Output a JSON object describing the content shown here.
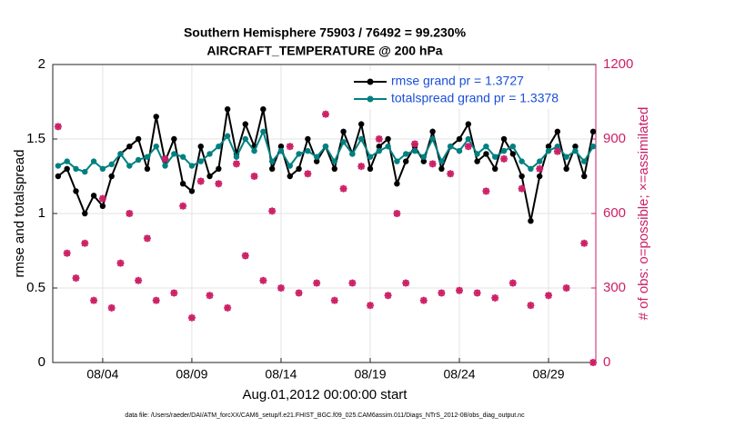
{
  "chart_data": {
    "type": "line",
    "title": "Southern Hemisphere 75903 / 76492 = 99.230%",
    "subtitle": "AIRCRAFT_TEMPERATURE @ 200 hPa",
    "ylabel": "rmse and totalspread",
    "y2label": "# of obs: o=possible; ×=assimilated",
    "xlabel": "Aug.01,2012 00:00:00 start",
    "footnote": "data file: /Users/raeder/DAI/ATM_forcXX/CAM6_setup/f.e21.FHIST_BGC.f09_025.CAM6assim.011/Diags_NTrS_2012-08/obs_diag_output.nc",
    "grid": true,
    "legend": "upper right",
    "xlim": [
      0.2,
      30.65
    ],
    "xticks": [
      {
        "value": 3,
        "label": "08/04"
      },
      {
        "value": 8,
        "label": "08/09"
      },
      {
        "value": 13,
        "label": "08/14"
      },
      {
        "value": 18,
        "label": "08/19"
      },
      {
        "value": 23,
        "label": "08/24"
      },
      {
        "value": 28,
        "label": "08/29"
      }
    ],
    "ylim": [
      0,
      2
    ],
    "yticks": [
      0,
      0.5,
      1,
      1.5,
      2
    ],
    "y2lim": [
      0,
      1200
    ],
    "y2ticks": [
      0,
      300,
      600,
      900,
      1200
    ],
    "x": [
      0.5,
      1,
      1.5,
      2,
      2.5,
      3,
      3.5,
      4,
      4.5,
      5,
      5.5,
      6,
      6.5,
      7,
      7.5,
      8,
      8.5,
      9,
      9.5,
      10,
      10.5,
      11,
      11.5,
      12,
      12.5,
      13,
      13.5,
      14,
      14.5,
      15,
      15.5,
      16,
      16.5,
      17,
      17.5,
      18,
      18.5,
      19,
      19.5,
      20,
      20.5,
      21,
      21.5,
      22,
      22.5,
      23,
      23.5,
      24,
      24.5,
      25,
      25.5,
      26,
      26.5,
      27,
      27.5,
      28,
      28.5,
      29,
      29.5,
      30,
      30.5
    ],
    "series": [
      {
        "name": "rmse grand pr = 1.3727",
        "color": "#000000",
        "values": [
          1.25,
          1.3,
          1.15,
          1.0,
          1.12,
          1.05,
          1.25,
          1.4,
          1.45,
          1.5,
          1.3,
          1.65,
          1.35,
          1.5,
          1.2,
          1.15,
          1.45,
          1.25,
          1.3,
          1.7,
          1.4,
          1.6,
          1.45,
          1.7,
          1.3,
          1.45,
          1.25,
          1.3,
          1.5,
          1.35,
          1.45,
          1.3,
          1.55,
          1.4,
          1.6,
          1.3,
          1.45,
          1.5,
          1.2,
          1.35,
          1.45,
          1.35,
          1.55,
          1.3,
          1.45,
          1.5,
          1.6,
          1.35,
          1.4,
          1.3,
          1.5,
          1.4,
          1.25,
          0.95,
          1.25,
          1.45,
          1.55,
          1.3,
          1.45,
          1.25,
          1.55
        ]
      },
      {
        "name": "totalspread grand pr = 1.3378",
        "color": "#008080",
        "values": [
          1.32,
          1.35,
          1.3,
          1.28,
          1.35,
          1.3,
          1.33,
          1.4,
          1.32,
          1.36,
          1.38,
          1.45,
          1.32,
          1.4,
          1.38,
          1.32,
          1.35,
          1.4,
          1.45,
          1.52,
          1.38,
          1.5,
          1.42,
          1.55,
          1.35,
          1.42,
          1.32,
          1.4,
          1.42,
          1.38,
          1.45,
          1.35,
          1.48,
          1.4,
          1.5,
          1.38,
          1.42,
          1.45,
          1.35,
          1.4,
          1.42,
          1.38,
          1.5,
          1.35,
          1.45,
          1.42,
          1.5,
          1.4,
          1.45,
          1.38,
          1.42,
          1.45,
          1.35,
          1.3,
          1.35,
          1.42,
          1.45,
          1.38,
          1.42,
          1.35,
          1.45
        ]
      },
      {
        "name": "possible",
        "color": "#cc1f66",
        "axis": "y2",
        "marker": "o",
        "values": [
          950,
          440,
          340,
          480,
          250,
          660,
          220,
          400,
          600,
          330,
          500,
          250,
          820,
          280,
          630,
          180,
          730,
          270,
          720,
          220,
          800,
          430,
          750,
          330,
          610,
          300,
          870,
          280,
          760,
          320,
          1000,
          250,
          700,
          320,
          790,
          230,
          900,
          270,
          600,
          320,
          880,
          250,
          800,
          280,
          760,
          290,
          870,
          280,
          690,
          260,
          820,
          320,
          700,
          230,
          780,
          270,
          850,
          300,
          1060,
          480,
          0
        ]
      },
      {
        "name": "assimilated",
        "color": "#cc1f66",
        "axis": "y2",
        "marker": "x",
        "values": [
          950,
          440,
          340,
          480,
          250,
          660,
          220,
          400,
          600,
          330,
          500,
          250,
          820,
          280,
          630,
          180,
          730,
          270,
          720,
          220,
          800,
          430,
          750,
          330,
          610,
          300,
          870,
          280,
          760,
          320,
          1000,
          250,
          700,
          320,
          790,
          230,
          900,
          270,
          600,
          320,
          880,
          250,
          800,
          280,
          760,
          290,
          870,
          280,
          690,
          260,
          820,
          320,
          700,
          230,
          780,
          270,
          850,
          300,
          1060,
          480,
          0
        ]
      }
    ]
  }
}
